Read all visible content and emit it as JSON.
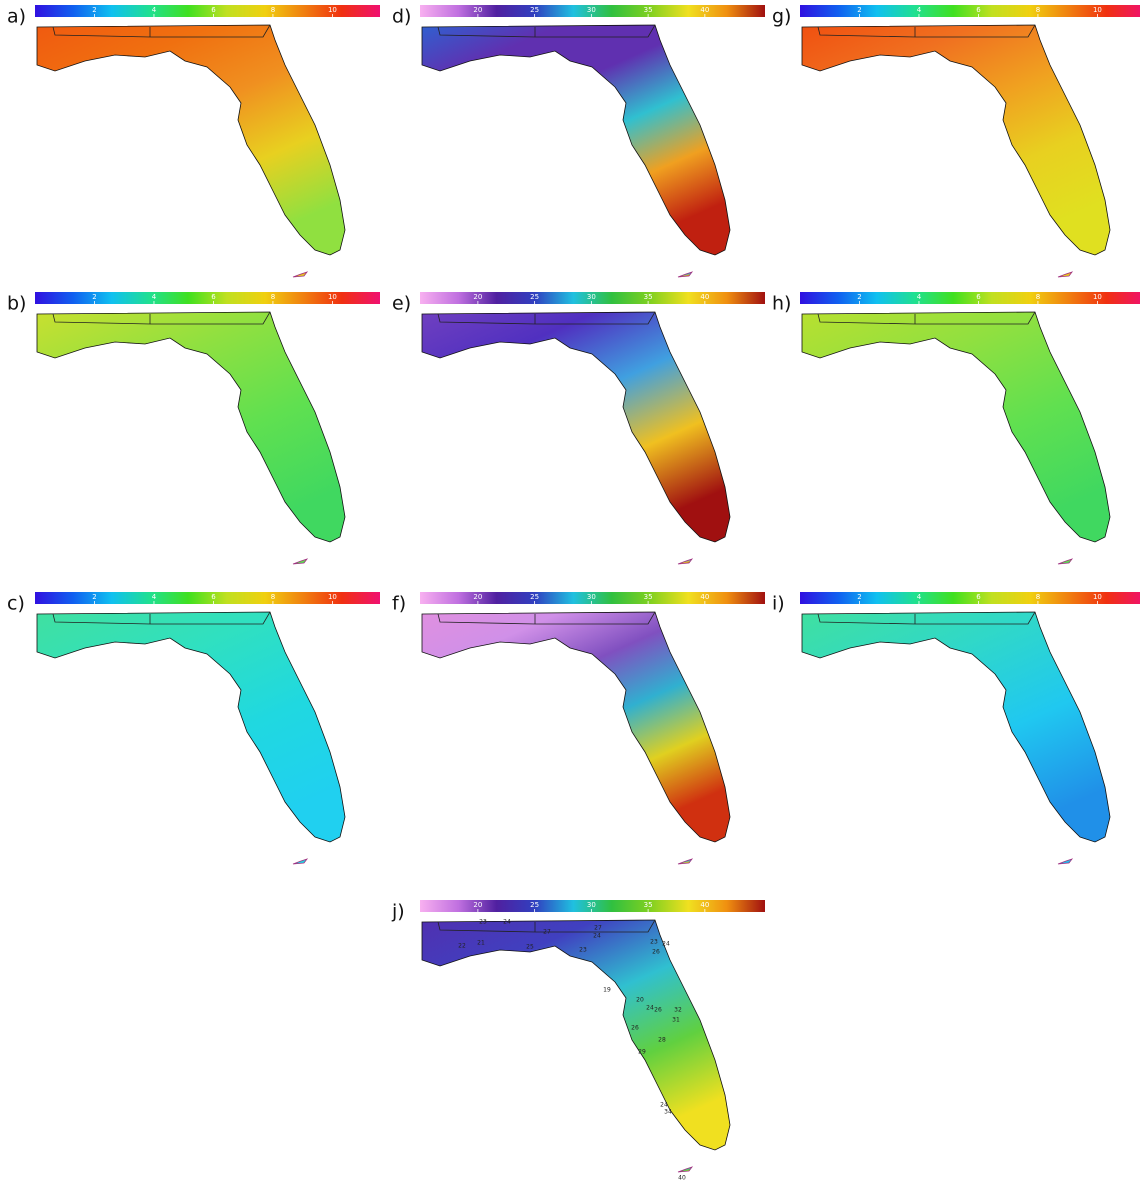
{
  "panels": [
    {
      "label": "a)",
      "colorbar": {
        "range": [
          0,
          11.6
        ],
        "ticks": [
          2,
          4,
          6,
          8,
          10
        ]
      }
    },
    {
      "label": "d)",
      "colorbar": {
        "range": [
          14.9,
          45.3
        ],
        "ticks": [
          20,
          25,
          30,
          35,
          40
        ]
      }
    },
    {
      "label": "g)",
      "colorbar": {
        "range": [
          0,
          11.6
        ],
        "ticks": [
          2,
          4,
          6,
          8,
          10
        ]
      }
    },
    {
      "label": "b)",
      "colorbar": {
        "range": [
          0,
          11.6
        ],
        "ticks": [
          2,
          4,
          6,
          8,
          10
        ]
      }
    },
    {
      "label": "e)",
      "colorbar": {
        "range": [
          14.9,
          45.3
        ],
        "ticks": [
          20,
          25,
          30,
          35,
          40
        ]
      }
    },
    {
      "label": "h)",
      "colorbar": {
        "range": [
          0,
          11.6
        ],
        "ticks": [
          2,
          4,
          6,
          8,
          10
        ]
      }
    },
    {
      "label": "c)",
      "colorbar": {
        "range": [
          0,
          11.6
        ],
        "ticks": [
          2,
          4,
          6,
          8,
          10
        ]
      }
    },
    {
      "label": "f)",
      "colorbar": {
        "range": [
          14.9,
          45.3
        ],
        "ticks": [
          20,
          25,
          30,
          35,
          40
        ]
      }
    },
    {
      "label": "i)",
      "colorbar": {
        "range": [
          0,
          11.6
        ],
        "ticks": [
          2,
          4,
          6,
          8,
          10
        ]
      }
    },
    {
      "label": "j)",
      "colorbar": {
        "range": [
          14.9,
          45.3
        ],
        "ticks": [
          20,
          25,
          30,
          35,
          40
        ]
      },
      "stations": [
        23,
        24,
        27,
        27,
        24,
        22,
        21,
        23,
        24,
        25,
        26,
        23,
        19,
        20,
        24,
        26,
        32,
        31,
        26,
        28,
        29,
        24,
        34,
        40
      ]
    }
  ]
}
